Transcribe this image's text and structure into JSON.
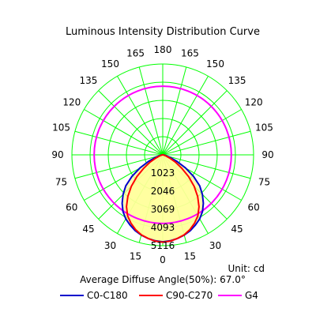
{
  "chart_data": {
    "type": "polar",
    "title": "Luminous Intensity Distribution Curve",
    "unit_label": "Unit: cd",
    "average_diffuse_angle_text": "Average Diffuse Angle(50%): 67.0°",
    "angle_labels_left": [
      "0",
      "15",
      "30",
      "45",
      "60",
      "75",
      "90",
      "105",
      "120",
      "135",
      "150",
      "165",
      "180"
    ],
    "angle_labels_right": [
      "0",
      "15",
      "30",
      "45",
      "60",
      "75",
      "90",
      "105",
      "120",
      "135",
      "150",
      "165",
      "180"
    ],
    "radial_ticks": [
      "1023",
      "2046",
      "3069",
      "4093",
      "5116"
    ],
    "rmax": 5116,
    "grid_color": "#00ff00",
    "series": [
      {
        "name": "C0-C180",
        "color": "#0000cc",
        "angles_deg": [
          0,
          5,
          10,
          15,
          20,
          25,
          30,
          35,
          40,
          45,
          50,
          55,
          60,
          65,
          70,
          75,
          80,
          85,
          90
        ],
        "values": [
          4900,
          4860,
          4780,
          4680,
          4540,
          4360,
          4160,
          3900,
          3560,
          3160,
          2720,
          2120,
          1480,
          900,
          460,
          190,
          60,
          10,
          0
        ]
      },
      {
        "name": "C90-C270",
        "color": "#ff0000",
        "angles_deg": [
          0,
          5,
          10,
          15,
          20,
          25,
          30,
          35,
          40,
          45,
          50,
          55,
          60,
          65,
          70,
          75,
          80,
          85,
          90
        ],
        "values": [
          4920,
          4880,
          4780,
          4660,
          4480,
          4240,
          3960,
          3560,
          3060,
          2500,
          1900,
          1300,
          820,
          440,
          200,
          80,
          30,
          8,
          0
        ]
      },
      {
        "name": "G4",
        "color": "#ff00ff",
        "shape": "circle",
        "value": 4093
      }
    ]
  }
}
